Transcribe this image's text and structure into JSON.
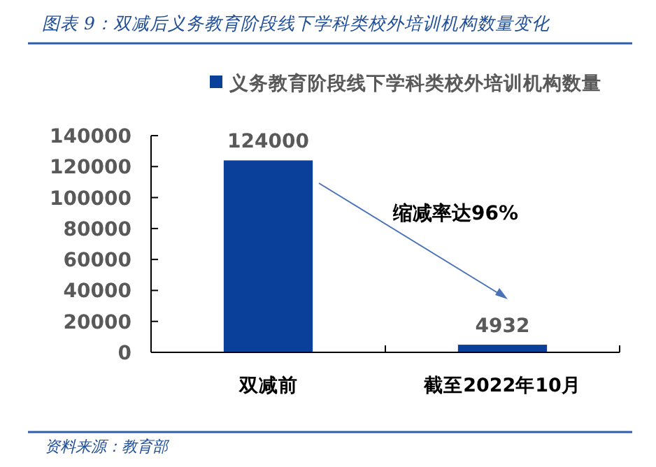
{
  "chart_data": {
    "type": "bar",
    "title": "图表 9：双减后义务教育阶段线下学科类校外培训机构数量变化",
    "categories": [
      "双减前",
      "截至2022年10月"
    ],
    "series": [
      {
        "name": "义务教育阶段线下学科类校外培训机构数量",
        "color": "#0a3f9a",
        "values": [
          124000,
          4932
        ]
      }
    ],
    "ylim": [
      0,
      140000
    ],
    "yticks": [
      0,
      20000,
      40000,
      60000,
      80000,
      100000,
      120000,
      140000
    ],
    "data_labels": true,
    "legend": "top",
    "grid": false,
    "annotations": [
      "缩减率达96%",
      "资料来源：教育部"
    ]
  }
}
